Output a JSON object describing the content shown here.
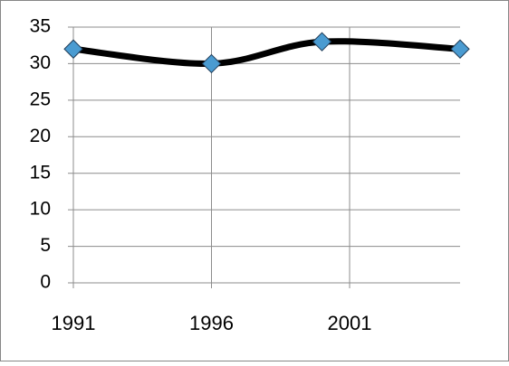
{
  "chart_data": {
    "type": "line",
    "x": [
      1991,
      1996,
      2000,
      2005
    ],
    "series": [
      {
        "color": "#000000",
        "marker_color": "#4a9bd1",
        "values": [
          32,
          30,
          33,
          32
        ]
      }
    ],
    "xlim": [
      1991,
      2005
    ],
    "xticks": [
      1991,
      1996,
      2001
    ],
    "ylim": [
      0,
      35
    ],
    "yticks": [
      0,
      5,
      10,
      15,
      20,
      25,
      30,
      35
    ],
    "grid": true,
    "smooth": true
  }
}
